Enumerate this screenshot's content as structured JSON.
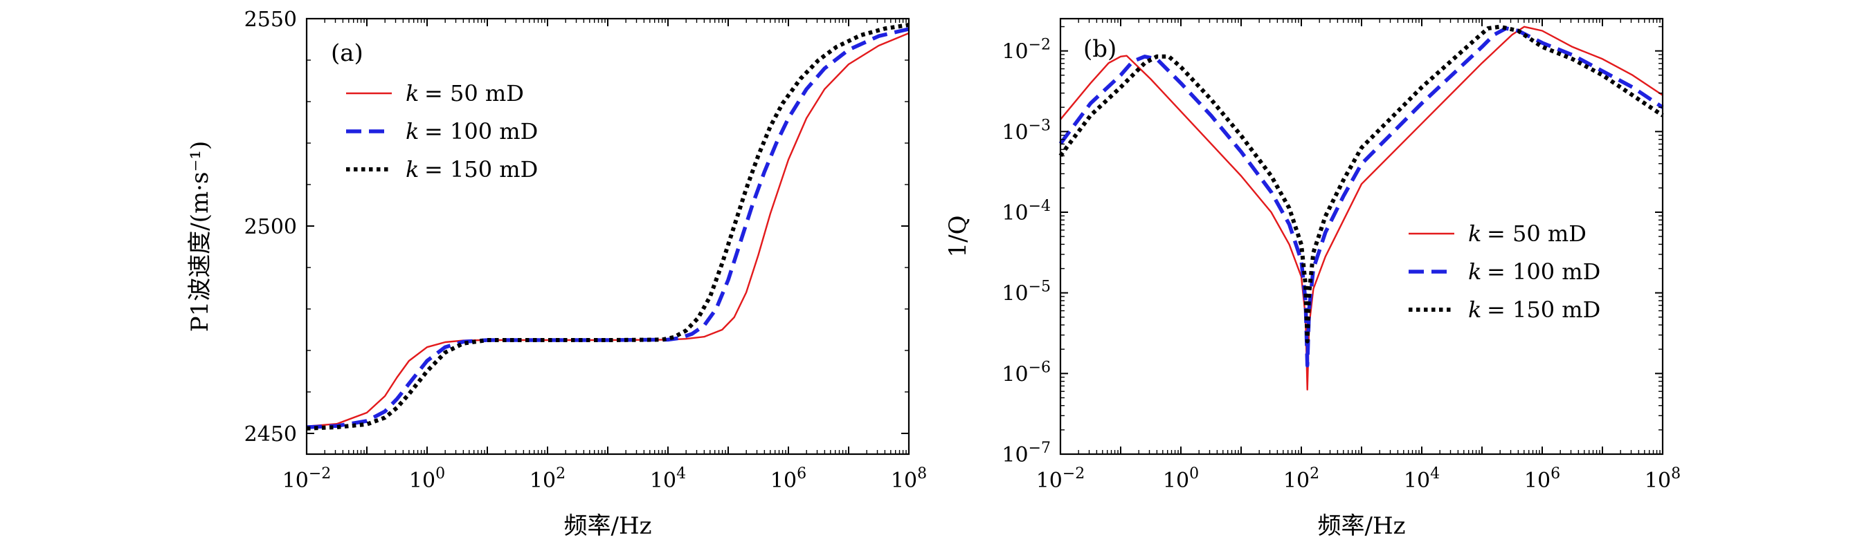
{
  "chart_data": [
    {
      "type": "line",
      "panel_label": "(a)",
      "xlabel": "频率/Hz",
      "ylabel": "P1波速度/(m·s⁻¹)",
      "x_scale": "log",
      "xlim_exp": [
        -2,
        8
      ],
      "ylim": [
        2445,
        2550
      ],
      "x_tick_labels": [
        {
          "base": "10",
          "exp": "−2"
        },
        {
          "base": "10",
          "exp": "0"
        },
        {
          "base": "10",
          "exp": "2"
        },
        {
          "base": "10",
          "exp": "4"
        },
        {
          "base": "10",
          "exp": "6"
        },
        {
          "base": "10",
          "exp": "8"
        }
      ],
      "y_ticks": [
        2450,
        2500,
        2550
      ],
      "y_tick_labels": [
        "2450",
        "2500",
        "2550"
      ],
      "legend_position": "top-left",
      "series": [
        {
          "name_var": "k",
          "name_rest": "= 50 mD",
          "color": "#e31a1c",
          "style": "solid",
          "x_exp": [
            -2,
            -1.5,
            -1,
            -0.7,
            -0.5,
            -0.3,
            0,
            0.3,
            0.6,
            1,
            2,
            3,
            4,
            4.3,
            4.6,
            4.9,
            5.1,
            5.3,
            5.5,
            5.7,
            6,
            6.3,
            6.6,
            7,
            7.5,
            8
          ],
          "values": [
            2451.7,
            2452.3,
            2455,
            2459,
            2463.5,
            2467.5,
            2470.8,
            2472,
            2472.4,
            2472.5,
            2472.5,
            2472.5,
            2472.6,
            2472.8,
            2473.3,
            2475,
            2478,
            2484,
            2493,
            2503,
            2516,
            2526,
            2533,
            2539,
            2543.5,
            2546.5
          ]
        },
        {
          "name_var": "k",
          "name_rest": "= 100 mD",
          "color": "#1f22e0",
          "style": "dashed",
          "x_exp": [
            -2,
            -1.5,
            -1,
            -0.7,
            -0.5,
            -0.3,
            0,
            0.3,
            0.6,
            1,
            2,
            3,
            4,
            4.2,
            4.4,
            4.6,
            4.8,
            5,
            5.2,
            5.4,
            5.6,
            5.8,
            6,
            6.3,
            6.6,
            7,
            7.5,
            8
          ],
          "values": [
            2451.5,
            2451.8,
            2453,
            2455.3,
            2458.3,
            2462,
            2467.5,
            2470.8,
            2472.1,
            2472.5,
            2472.5,
            2472.5,
            2472.6,
            2473,
            2474,
            2476,
            2480,
            2487,
            2496,
            2505,
            2513,
            2520,
            2526,
            2533,
            2538,
            2542.5,
            2545.8,
            2547.5
          ]
        },
        {
          "name_var": "k",
          "name_rest": "= 150 mD",
          "color": "#000000",
          "style": "dotted",
          "x_exp": [
            -2,
            -1.5,
            -1,
            -0.7,
            -0.5,
            -0.3,
            0,
            0.3,
            0.6,
            1,
            2,
            3,
            3.9,
            4.1,
            4.3,
            4.5,
            4.7,
            4.9,
            5.1,
            5.3,
            5.5,
            5.7,
            5.9,
            6.2,
            6.5,
            6.8,
            7.2,
            7.6,
            8
          ],
          "values": [
            2451.2,
            2451.5,
            2452.2,
            2453.8,
            2456.2,
            2459.5,
            2465,
            2469.5,
            2471.7,
            2472.5,
            2472.5,
            2472.5,
            2472.6,
            2473.2,
            2474.8,
            2477.8,
            2483,
            2491,
            2500,
            2509,
            2517,
            2524,
            2529.5,
            2535.5,
            2540,
            2543.2,
            2546,
            2547.6,
            2548.5
          ]
        }
      ]
    },
    {
      "type": "line",
      "panel_label": "(b)",
      "xlabel": "频率/Hz",
      "ylabel": "1/Q",
      "x_scale": "log",
      "y_scale": "log",
      "xlim_exp": [
        -2,
        8
      ],
      "ylim_exp": [
        -7,
        -1.6
      ],
      "x_tick_labels": [
        {
          "base": "10",
          "exp": "−2"
        },
        {
          "base": "10",
          "exp": "0"
        },
        {
          "base": "10",
          "exp": "2"
        },
        {
          "base": "10",
          "exp": "4"
        },
        {
          "base": "10",
          "exp": "6"
        },
        {
          "base": "10",
          "exp": "8"
        }
      ],
      "y_tick_labels": [
        {
          "base": "10",
          "exp": "−7"
        },
        {
          "base": "10",
          "exp": "−6"
        },
        {
          "base": "10",
          "exp": "−5"
        },
        {
          "base": "10",
          "exp": "−4"
        },
        {
          "base": "10",
          "exp": "−3"
        },
        {
          "base": "10",
          "exp": "−2"
        }
      ],
      "legend_position": "center-right",
      "series": [
        {
          "name_var": "k",
          "name_rest": "= 50 mD",
          "color": "#e31a1c",
          "style": "solid",
          "x_exp": [
            -2,
            -1.5,
            -1.2,
            -1,
            -0.9,
            -0.5,
            0,
            0.5,
            1,
            1.5,
            1.8,
            2.0,
            2.07,
            2.1,
            2.13,
            2.2,
            2.4,
            2.7,
            3,
            4,
            5,
            5.5,
            5.7,
            6,
            6.5,
            7,
            7.5,
            8
          ],
          "y_exp": [
            -2.85,
            -2.4,
            -2.15,
            -2.07,
            -2.06,
            -2.35,
            -2.75,
            -3.15,
            -3.55,
            -4.0,
            -4.4,
            -4.8,
            -5.3,
            -6.2,
            -5.4,
            -4.95,
            -4.55,
            -4.1,
            -3.65,
            -2.9,
            -2.15,
            -1.8,
            -1.7,
            -1.75,
            -1.95,
            -2.1,
            -2.3,
            -2.55
          ]
        },
        {
          "name_var": "k",
          "name_rest": "= 100 mD",
          "color": "#1f22e0",
          "style": "dashed",
          "x_exp": [
            -2,
            -1.5,
            -1,
            -0.8,
            -0.6,
            -0.4,
            0,
            0.5,
            1,
            1.5,
            1.8,
            2.0,
            2.07,
            2.1,
            2.13,
            2.2,
            2.4,
            2.7,
            3,
            4,
            5,
            5.2,
            5.4,
            5.6,
            6,
            6.5,
            7,
            7.5,
            8
          ],
          "y_exp": [
            -3.15,
            -2.65,
            -2.3,
            -2.13,
            -2.07,
            -2.1,
            -2.4,
            -2.8,
            -3.25,
            -3.75,
            -4.15,
            -4.6,
            -5.1,
            -5.9,
            -5.2,
            -4.7,
            -4.25,
            -3.8,
            -3.4,
            -2.65,
            -1.95,
            -1.8,
            -1.72,
            -1.75,
            -1.9,
            -2.05,
            -2.25,
            -2.45,
            -2.7
          ]
        },
        {
          "name_var": "k",
          "name_rest": "= 150 mD",
          "color": "#000000",
          "style": "dotted",
          "x_exp": [
            -2,
            -1.5,
            -1,
            -0.6,
            -0.4,
            -0.2,
            0,
            0.5,
            1,
            1.5,
            1.8,
            2.0,
            2.07,
            2.1,
            2.13,
            2.2,
            2.4,
            2.7,
            3,
            4,
            4.9,
            5.1,
            5.3,
            5.6,
            6,
            6.5,
            7,
            7.5,
            8
          ],
          "y_exp": [
            -3.3,
            -2.8,
            -2.45,
            -2.15,
            -2.07,
            -2.07,
            -2.2,
            -2.6,
            -3.05,
            -3.55,
            -3.95,
            -4.4,
            -4.9,
            -5.6,
            -5.0,
            -4.5,
            -4.05,
            -3.6,
            -3.2,
            -2.45,
            -1.85,
            -1.72,
            -1.7,
            -1.75,
            -1.95,
            -2.1,
            -2.3,
            -2.55,
            -2.8
          ]
        }
      ]
    }
  ]
}
